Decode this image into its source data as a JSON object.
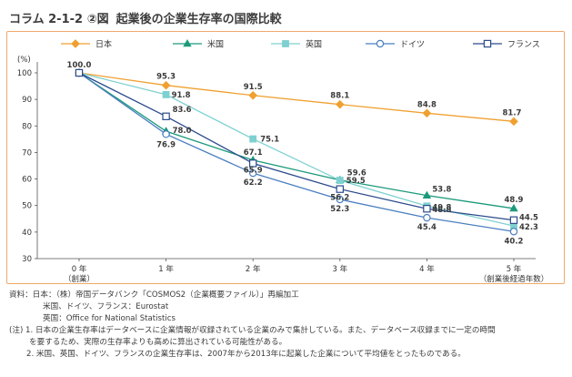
{
  "figure": {
    "label": "コラム 2-1-2 ②図",
    "title": "起業後の企業生存率の国際比較"
  },
  "chart_data": {
    "type": "line",
    "title": "起業後の企業生存率の国際比較",
    "ylabel": "(%)",
    "xlabel": "",
    "ylim": [
      30,
      100
    ],
    "yticks": [
      30,
      40,
      50,
      60,
      70,
      80,
      90,
      100
    ],
    "categories": [
      "0 年",
      "1 年",
      "2 年",
      "3 年",
      "4 年",
      "5 年"
    ],
    "category_sublabels": [
      "（創業）",
      "",
      "",
      "",
      "",
      "（創業後経過年数）"
    ],
    "legend_position": "top",
    "grid": false,
    "series": [
      {
        "name": "日本",
        "color": "#f0a030",
        "marker": "diamond",
        "values": [
          100.0,
          95.3,
          91.5,
          88.1,
          84.8,
          81.7
        ]
      },
      {
        "name": "米国",
        "color": "#1a9a7a",
        "marker": "triangle",
        "values": [
          100.0,
          78.0,
          67.1,
          59.6,
          53.8,
          48.9
        ]
      },
      {
        "name": "英国",
        "color": "#7fd0d0",
        "marker": "square-filled",
        "values": [
          100.0,
          91.8,
          75.1,
          59.5,
          49.8,
          42.3
        ]
      },
      {
        "name": "ドイツ",
        "color": "#4a7fc0",
        "marker": "circle-open",
        "values": [
          100.0,
          76.9,
          62.2,
          52.3,
          45.4,
          40.2
        ]
      },
      {
        "name": "フランス",
        "color": "#2c4b8c",
        "marker": "square-open",
        "values": [
          100.0,
          83.6,
          65.9,
          56.2,
          48.8,
          44.5
        ]
      }
    ],
    "data_labels": [
      {
        "text": "100.0",
        "x": 0,
        "y": 100.0,
        "dx": 0,
        "dy": -6,
        "anchor": "middle"
      },
      {
        "text": "95.3",
        "x": 1,
        "y": 95.3,
        "dx": 0,
        "dy": -7,
        "anchor": "middle"
      },
      {
        "text": "91.5",
        "x": 2,
        "y": 91.5,
        "dx": 0,
        "dy": -7,
        "anchor": "middle"
      },
      {
        "text": "88.1",
        "x": 3,
        "y": 88.1,
        "dx": 0,
        "dy": -7,
        "anchor": "middle"
      },
      {
        "text": "84.8",
        "x": 4,
        "y": 84.8,
        "dx": 0,
        "dy": -7,
        "anchor": "middle"
      },
      {
        "text": "81.7",
        "x": 5,
        "y": 81.7,
        "dx": -2,
        "dy": -7,
        "anchor": "middle"
      },
      {
        "text": "91.8",
        "x": 1,
        "y": 91.8,
        "dx": 6,
        "dy": 3,
        "anchor": "start"
      },
      {
        "text": "75.1",
        "x": 2,
        "y": 75.1,
        "dx": 8,
        "dy": 3,
        "anchor": "start"
      },
      {
        "text": "59.5",
        "x": 3,
        "y": 59.5,
        "dx": 7,
        "dy": 3,
        "anchor": "start"
      },
      {
        "text": "49.8",
        "x": 4,
        "y": 49.8,
        "dx": 6,
        "dy": 4,
        "anchor": "start"
      },
      {
        "text": "42.3",
        "x": 5,
        "y": 42.3,
        "dx": 6,
        "dy": 4,
        "anchor": "start"
      },
      {
        "text": "78.0",
        "x": 1,
        "y": 78.0,
        "dx": 7,
        "dy": 2,
        "anchor": "start"
      },
      {
        "text": "67.1",
        "x": 2,
        "y": 67.1,
        "dx": 0,
        "dy": -6,
        "anchor": "middle"
      },
      {
        "text": "59.6",
        "x": 3,
        "y": 59.6,
        "dx": 8,
        "dy": -5,
        "anchor": "start"
      },
      {
        "text": "53.8",
        "x": 4,
        "y": 53.8,
        "dx": 6,
        "dy": -4,
        "anchor": "start"
      },
      {
        "text": "48.9",
        "x": 5,
        "y": 48.9,
        "dx": 0,
        "dy": -7,
        "anchor": "middle"
      },
      {
        "text": "76.9",
        "x": 1,
        "y": 76.9,
        "dx": 0,
        "dy": 14,
        "anchor": "middle"
      },
      {
        "text": "62.2",
        "x": 2,
        "y": 62.2,
        "dx": 0,
        "dy": 13,
        "anchor": "middle"
      },
      {
        "text": "52.3",
        "x": 3,
        "y": 52.3,
        "dx": 0,
        "dy": 13,
        "anchor": "middle"
      },
      {
        "text": "45.4",
        "x": 4,
        "y": 45.4,
        "dx": 0,
        "dy": 13,
        "anchor": "middle"
      },
      {
        "text": "40.2",
        "x": 5,
        "y": 40.2,
        "dx": 0,
        "dy": 13,
        "anchor": "middle"
      },
      {
        "text": "83.6",
        "x": 1,
        "y": 83.6,
        "dx": 7,
        "dy": -5,
        "anchor": "start"
      },
      {
        "text": "65.9",
        "x": 2,
        "y": 65.9,
        "dx": 0,
        "dy": 10,
        "anchor": "middle"
      },
      {
        "text": "56.2",
        "x": 3,
        "y": 56.2,
        "dx": 0,
        "dy": 12,
        "anchor": "middle"
      },
      {
        "text": "48.8",
        "x": 4,
        "y": 48.8,
        "dx": 6,
        "dy": 4,
        "anchor": "start"
      },
      {
        "text": "44.5",
        "x": 5,
        "y": 44.5,
        "dx": 6,
        "dy": 0,
        "anchor": "start"
      }
    ]
  },
  "notes": {
    "source_1": "資料：日本：（株）帝国データバンク「COSMOS2（企業概要ファイル）」再編加工",
    "source_2": "米国、ドイツ、フランス：Eurostat",
    "source_3": "英国：Office for National Statistics",
    "note_1a": "(注) 1. 日本の企業生存率はデータベースに企業情報が収録されている企業のみで集計している。また、データベース収録までに一定の時間",
    "note_1b": "を要するため、実際の生存率よりも高めに算出されている可能性がある。",
    "note_2": "2. 米国、英国、ドイツ、フランスの企業生存率は、2007年から2013年に起業した企業について平均値をとったものである。"
  }
}
